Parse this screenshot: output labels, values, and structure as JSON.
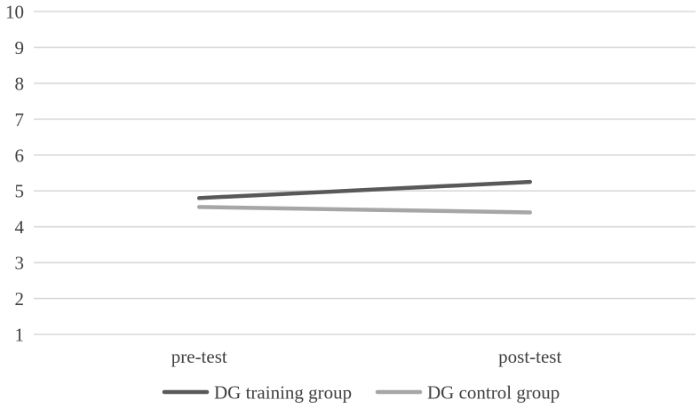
{
  "chart_data": {
    "type": "line",
    "title": "",
    "categories": [
      "pre-test",
      "post-test"
    ],
    "series": [
      {
        "name": "DG training group",
        "values": [
          4.8,
          5.25
        ],
        "color": "#595959"
      },
      {
        "name": "DG control group",
        "values": [
          4.55,
          4.4
        ],
        "color": "#a6a6a6"
      }
    ],
    "xlabel": "",
    "ylabel": "",
    "yaxis": {
      "min": 1,
      "max": 10,
      "ticks": [
        1,
        2,
        3,
        4,
        5,
        6,
        7,
        8,
        9,
        10
      ]
    },
    "grid": true,
    "legend_position": "bottom",
    "colors": {
      "gridline": "#d9d9d9",
      "text": "#404040",
      "background": "#ffffff"
    }
  }
}
